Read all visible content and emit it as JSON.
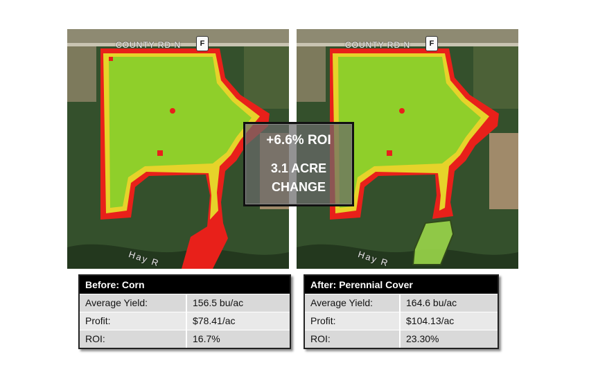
{
  "maps": {
    "road_label": "COUNTY RD N",
    "road_shield": "F",
    "river_label": "Hay R"
  },
  "overlay": {
    "roi_change": "+6.6% ROI",
    "acre_line1": "3.1 ACRE",
    "acre_line2": "CHANGE"
  },
  "before": {
    "title": "Before: Corn",
    "rows": [
      {
        "label": "Average Yield:",
        "value": "156.5 bu/ac"
      },
      {
        "label": "Profit:",
        "value": "$78.41/ac"
      },
      {
        "label": "ROI:",
        "value": "16.7%"
      }
    ]
  },
  "after": {
    "title": "After: Perennial Cover",
    "rows": [
      {
        "label": "Average Yield:",
        "value": "164.6 bu/ac"
      },
      {
        "label": "Profit:",
        "value": "$104.13/ac"
      },
      {
        "label": "ROI:",
        "value": "23.30%"
      }
    ]
  },
  "colors": {
    "low_profit": "#e8201a",
    "mid_profit": "#e6d32a",
    "high_profit": "#8fcf2a",
    "perennial": "#9ad64a",
    "forest": "#2e4a26"
  }
}
